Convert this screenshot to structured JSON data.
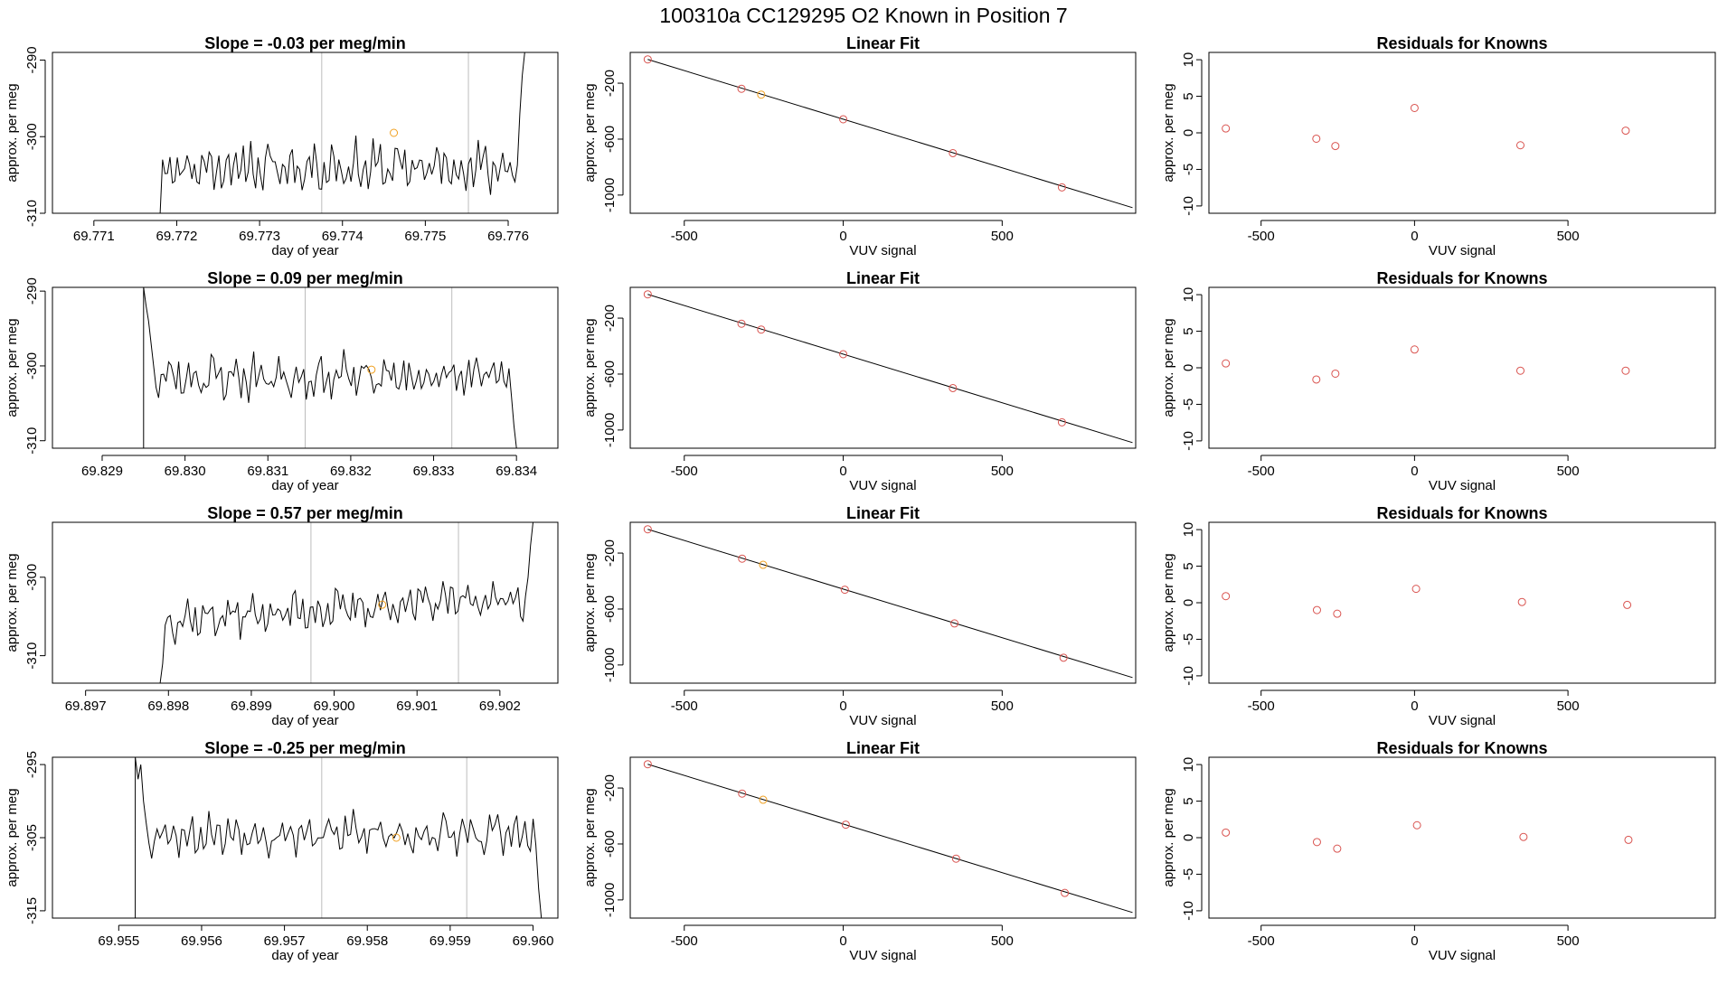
{
  "title": "100310a      CC129295   O2 Known in Position  7",
  "colors": {
    "point": "#d9534f",
    "highlight": "#f0a020",
    "trace": "#000000",
    "marker_line": "#bdbdbd",
    "frame": "#000000"
  },
  "chart_data": [
    {
      "row": 1,
      "panel": "time",
      "type": "line",
      "title": "Slope =  -0.03  per meg/min",
      "xlabel": "day of year",
      "ylabel": "approx. per meg",
      "xlim": [
        69.7705,
        69.7766
      ],
      "ylim": [
        -310,
        -289
      ],
      "xticks": [
        69.771,
        69.772,
        69.773,
        69.774,
        69.775,
        69.776
      ],
      "xtick_labels": [
        "69.771",
        "69.772",
        "69.773",
        "69.774",
        "69.775",
        "69.776"
      ],
      "yticks": [
        -310,
        -300,
        -290
      ],
      "ytick_labels": [
        "-310",
        "-300",
        "-290"
      ],
      "trace_start": 69.7718,
      "trace_end": 69.7762,
      "trace_baseline": -304,
      "trace_amplitude": 3,
      "trace_seed": 11,
      "start_values": [
        -310,
        -303
      ],
      "end_values": [
        -297,
        -292,
        -289
      ],
      "vlines": [
        69.77375,
        69.77552
      ],
      "highlight_point": {
        "x": 69.77462,
        "y": -299.5
      }
    },
    {
      "row": 1,
      "panel": "fit",
      "type": "scatter",
      "title": "Linear Fit",
      "xlabel": "VUV signal",
      "ylabel": "approx. per meg",
      "xlim": [
        -670,
        920
      ],
      "ylim": [
        -1130,
        20
      ],
      "xticks": [
        -500,
        0,
        500
      ],
      "xtick_labels": [
        "-500",
        "0",
        "500"
      ],
      "yticks": [
        -1000,
        -600,
        -200
      ],
      "ytick_labels": [
        "-1000",
        "-600",
        "-200"
      ],
      "line": {
        "x": [
          -615,
          910
        ],
        "y": [
          -30,
          -1090
        ]
      },
      "points": [
        {
          "x": -615,
          "y": -30,
          "highlight": false
        },
        {
          "x": -320,
          "y": -240,
          "highlight": false
        },
        {
          "x": -258,
          "y": -282,
          "highlight": true
        },
        {
          "x": 0,
          "y": -458,
          "highlight": false
        },
        {
          "x": 345,
          "y": -700,
          "highlight": false
        },
        {
          "x": 688,
          "y": -945,
          "highlight": false
        }
      ]
    },
    {
      "row": 1,
      "panel": "residuals",
      "type": "scatter",
      "title": "Residuals for Knowns",
      "xlabel": "VUV signal",
      "ylabel": "approx. per meg",
      "xlim": [
        -670,
        980
      ],
      "ylim": [
        -11,
        11
      ],
      "xticks": [
        -500,
        0,
        500
      ],
      "xtick_labels": [
        "-500",
        "0",
        "500"
      ],
      "yticks": [
        -10,
        -5,
        0,
        5,
        10
      ],
      "ytick_labels": [
        "-10",
        "-5",
        "0",
        "5",
        "10"
      ],
      "points": [
        {
          "x": -615,
          "y": 0.6
        },
        {
          "x": -320,
          "y": -0.8
        },
        {
          "x": -258,
          "y": -1.8
        },
        {
          "x": 0,
          "y": 3.4
        },
        {
          "x": 345,
          "y": -1.7
        },
        {
          "x": 688,
          "y": 0.3
        }
      ]
    },
    {
      "row": 2,
      "panel": "time",
      "type": "line",
      "title": "Slope =  0.09  per meg/min",
      "xlabel": "day of year",
      "ylabel": "approx. per meg",
      "xlim": [
        69.8284,
        69.8345
      ],
      "ylim": [
        -311,
        -289.5
      ],
      "xticks": [
        69.829,
        69.83,
        69.831,
        69.832,
        69.833,
        69.834
      ],
      "xtick_labels": [
        "69.829",
        "69.830",
        "69.831",
        "69.832",
        "69.833",
        "69.834"
      ],
      "yticks": [
        -310,
        -300,
        -290
      ],
      "ytick_labels": [
        "-310",
        "-300",
        "-290"
      ],
      "trace_start": 69.8295,
      "trace_end": 69.834,
      "trace_baseline": -301.5,
      "trace_amplitude": 2.8,
      "trace_seed": 23,
      "start_values": [
        -289.5,
        -292,
        -294,
        -297,
        -300
      ],
      "end_values": [
        -304,
        -308,
        -311
      ],
      "vlines": [
        69.83145,
        69.83322
      ],
      "highlight_point": {
        "x": 69.83225,
        "y": -300.5
      }
    },
    {
      "row": 2,
      "panel": "fit",
      "type": "scatter",
      "title": "Linear Fit",
      "xlabel": "VUV signal",
      "ylabel": "approx. per meg",
      "xlim": [
        -670,
        920
      ],
      "ylim": [
        -1130,
        20
      ],
      "xticks": [
        -500,
        0,
        500
      ],
      "xtick_labels": [
        "-500",
        "0",
        "500"
      ],
      "yticks": [
        -1000,
        -600,
        -200
      ],
      "ytick_labels": [
        "-1000",
        "-600",
        "-200"
      ],
      "line": {
        "x": [
          -615,
          910
        ],
        "y": [
          -30,
          -1090
        ]
      },
      "points": [
        {
          "x": -615,
          "y": -30,
          "highlight": false
        },
        {
          "x": -320,
          "y": -240,
          "highlight": false
        },
        {
          "x": -258,
          "y": -282,
          "highlight": false
        },
        {
          "x": 0,
          "y": -458,
          "highlight": false
        },
        {
          "x": 345,
          "y": -700,
          "highlight": false
        },
        {
          "x": 688,
          "y": -945,
          "highlight": false
        }
      ]
    },
    {
      "row": 2,
      "panel": "residuals",
      "type": "scatter",
      "title": "Residuals for Knowns",
      "xlabel": "VUV signal",
      "ylabel": "approx. per meg",
      "xlim": [
        -670,
        980
      ],
      "ylim": [
        -11,
        11
      ],
      "xticks": [
        -500,
        0,
        500
      ],
      "xtick_labels": [
        "-500",
        "0",
        "500"
      ],
      "yticks": [
        -10,
        -5,
        0,
        5,
        10
      ],
      "ytick_labels": [
        "-10",
        "-5",
        "0",
        "5",
        "10"
      ],
      "points": [
        {
          "x": -615,
          "y": 0.6
        },
        {
          "x": -320,
          "y": -1.6
        },
        {
          "x": -258,
          "y": -0.8
        },
        {
          "x": 0,
          "y": 2.5
        },
        {
          "x": 345,
          "y": -0.4
        },
        {
          "x": 688,
          "y": -0.4
        }
      ]
    },
    {
      "row": 3,
      "panel": "time",
      "type": "line",
      "title": "Slope =  0.57  per meg/min",
      "xlabel": "day of year",
      "ylabel": "approx. per meg",
      "xlim": [
        69.8966,
        69.9027
      ],
      "ylim": [
        -313.5,
        -293
      ],
      "xticks": [
        69.897,
        69.898,
        69.899,
        69.9,
        69.901,
        69.902
      ],
      "xtick_labels": [
        "69.897",
        "69.898",
        "69.899",
        "69.900",
        "69.901",
        "69.902"
      ],
      "yticks": [
        -310,
        -300
      ],
      "ytick_labels": [
        "-310",
        "-300"
      ],
      "trace_start": 69.8979,
      "trace_end": 69.9024,
      "trace_baseline": -305.5,
      "trace_amplitude": 2.4,
      "trace_seed": 37,
      "trend": 3.0,
      "start_values": [
        -313.5,
        -311
      ],
      "end_values": [
        -300,
        -296,
        -293
      ],
      "vlines": [
        69.89972,
        69.9015
      ],
      "highlight_point": {
        "x": 69.90058,
        "y": -303.5
      }
    },
    {
      "row": 3,
      "panel": "fit",
      "type": "scatter",
      "title": "Linear Fit",
      "xlabel": "VUV signal",
      "ylabel": "approx. per meg",
      "xlim": [
        -670,
        920
      ],
      "ylim": [
        -1130,
        20
      ],
      "xticks": [
        -500,
        0,
        500
      ],
      "xtick_labels": [
        "-500",
        "0",
        "500"
      ],
      "yticks": [
        -1000,
        -600,
        -200
      ],
      "ytick_labels": [
        "-1000",
        "-600",
        "-200"
      ],
      "line": {
        "x": [
          -615,
          910
        ],
        "y": [
          -30,
          -1090
        ]
      },
      "points": [
        {
          "x": -615,
          "y": -30,
          "highlight": false
        },
        {
          "x": -318,
          "y": -240,
          "highlight": false
        },
        {
          "x": -252,
          "y": -284,
          "highlight": true
        },
        {
          "x": 5,
          "y": -462,
          "highlight": false
        },
        {
          "x": 350,
          "y": -703,
          "highlight": false
        },
        {
          "x": 693,
          "y": -948,
          "highlight": false
        }
      ]
    },
    {
      "row": 3,
      "panel": "residuals",
      "type": "scatter",
      "title": "Residuals for Knowns",
      "xlabel": "VUV signal",
      "ylabel": "approx. per meg",
      "xlim": [
        -670,
        980
      ],
      "ylim": [
        -11,
        11
      ],
      "xticks": [
        -500,
        0,
        500
      ],
      "xtick_labels": [
        "-500",
        "0",
        "500"
      ],
      "yticks": [
        -10,
        -5,
        0,
        5,
        10
      ],
      "ytick_labels": [
        "-10",
        "-5",
        "0",
        "5",
        "10"
      ],
      "points": [
        {
          "x": -615,
          "y": 0.9
        },
        {
          "x": -318,
          "y": -1.0
        },
        {
          "x": -252,
          "y": -1.5
        },
        {
          "x": 5,
          "y": 1.9
        },
        {
          "x": 350,
          "y": 0.1
        },
        {
          "x": 693,
          "y": -0.3
        }
      ]
    },
    {
      "row": 4,
      "panel": "time",
      "type": "line",
      "title": "Slope =  -0.25  per meg/min",
      "xlabel": "day of year",
      "ylabel": "approx. per meg",
      "xlim": [
        69.9542,
        69.9603
      ],
      "ylim": [
        -316,
        -294
      ],
      "xticks": [
        69.955,
        69.956,
        69.957,
        69.958,
        69.959,
        69.96
      ],
      "xtick_labels": [
        "69.955",
        "69.956",
        "69.957",
        "69.958",
        "69.959",
        "69.960"
      ],
      "yticks": [
        -315,
        -305,
        -295
      ],
      "ytick_labels": [
        "-315",
        "-305",
        "-295"
      ],
      "trace_start": 69.9552,
      "trace_end": 69.9601,
      "trace_baseline": -304.5,
      "trace_amplitude": 2.6,
      "trace_seed": 53,
      "start_values": [
        -294,
        -297,
        -295,
        -300,
        -303
      ],
      "end_values": [
        -306,
        -312,
        -316
      ],
      "vlines": [
        69.95745,
        69.9592
      ],
      "highlight_point": {
        "x": 69.95835,
        "y": -305
      }
    },
    {
      "row": 4,
      "panel": "fit",
      "type": "scatter",
      "title": "Linear Fit",
      "xlabel": "VUV signal",
      "ylabel": "approx. per meg",
      "xlim": [
        -670,
        920
      ],
      "ylim": [
        -1130,
        20
      ],
      "xticks": [
        -500,
        0,
        500
      ],
      "xtick_labels": [
        "-500",
        "0",
        "500"
      ],
      "yticks": [
        -1000,
        -600,
        -200
      ],
      "ytick_labels": [
        "-1000",
        "-600",
        "-200"
      ],
      "line": {
        "x": [
          -615,
          910
        ],
        "y": [
          -30,
          -1090
        ]
      },
      "points": [
        {
          "x": -615,
          "y": -30,
          "highlight": false
        },
        {
          "x": -318,
          "y": -240,
          "highlight": false
        },
        {
          "x": -252,
          "y": -284,
          "highlight": true
        },
        {
          "x": 8,
          "y": -462,
          "highlight": false
        },
        {
          "x": 355,
          "y": -705,
          "highlight": false
        },
        {
          "x": 697,
          "y": -950,
          "highlight": false
        }
      ]
    },
    {
      "row": 4,
      "panel": "residuals",
      "type": "scatter",
      "title": "Residuals for Knowns",
      "xlabel": "VUV signal",
      "ylabel": "approx. per meg",
      "xlim": [
        -670,
        980
      ],
      "ylim": [
        -11,
        11
      ],
      "xticks": [
        -500,
        0,
        500
      ],
      "xtick_labels": [
        "-500",
        "0",
        "500"
      ],
      "yticks": [
        -10,
        -5,
        0,
        5,
        10
      ],
      "ytick_labels": [
        "-10",
        "-5",
        "0",
        "5",
        "10"
      ],
      "points": [
        {
          "x": -615,
          "y": 0.7
        },
        {
          "x": -318,
          "y": -0.6
        },
        {
          "x": -252,
          "y": -1.5
        },
        {
          "x": 8,
          "y": 1.7
        },
        {
          "x": 355,
          "y": 0.1
        },
        {
          "x": 697,
          "y": -0.3
        }
      ]
    }
  ]
}
